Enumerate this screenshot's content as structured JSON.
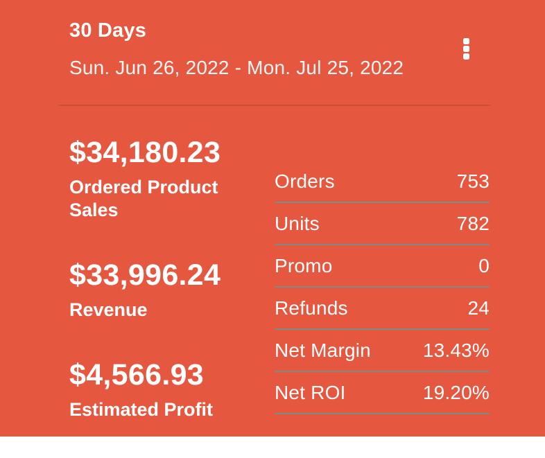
{
  "header": {
    "title": "30 Days",
    "date_range": "Sun. Jun 26, 2022 - Mon. Jul 25, 2022"
  },
  "metrics": [
    {
      "value": "$34,180.23",
      "label": "Ordered Product Sales"
    },
    {
      "value": "$33,996.24",
      "label": "Revenue"
    },
    {
      "value": "$4,566.93",
      "label": "Estimated Profit"
    }
  ],
  "stats": [
    {
      "label": "Orders",
      "value": "753"
    },
    {
      "label": "Units",
      "value": "782"
    },
    {
      "label": "Promo",
      "value": "0"
    },
    {
      "label": "Refunds",
      "value": "24"
    },
    {
      "label": "Net Margin",
      "value": "13.43%"
    },
    {
      "label": "Net ROI",
      "value": "19.20%"
    }
  ],
  "icons": {
    "menu": "kebab-menu-icon"
  },
  "colors": {
    "background": "#E5573F",
    "text": "#FFFFFF",
    "table_divider": "#7D8A8A",
    "header_divider": "rgba(0,0,0,0.10)"
  }
}
